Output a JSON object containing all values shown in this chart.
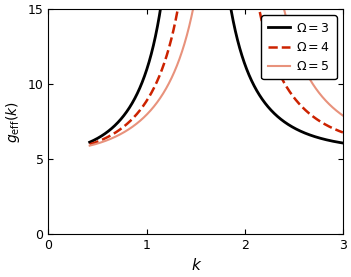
{
  "xlim": [
    0,
    3
  ],
  "ylim": [
    0,
    15
  ],
  "xticks": [
    0,
    1,
    2,
    3
  ],
  "yticks": [
    0,
    5,
    10,
    15
  ],
  "xlabel": "k",
  "ylabel": "$g_{\\mathrm{eff}}(k)$",
  "scale_factor": 5.6,
  "k_start": 0.42,
  "k_end": 3.0,
  "num_points": 2000,
  "omega_values": [
    3,
    4,
    5
  ],
  "colors": [
    "#000000",
    "#cc2200",
    "#e8927c"
  ],
  "linestyles": [
    "solid",
    "dashed",
    "solid"
  ],
  "linewidths": [
    2.0,
    1.8,
    1.5
  ],
  "legend_labels": [
    "$\\Omega = 3$",
    "$\\Omega = 4$",
    "$\\Omega = 5$"
  ],
  "legend_loc": "upper right",
  "figsize": [
    3.51,
    2.77
  ],
  "dpi": 100
}
